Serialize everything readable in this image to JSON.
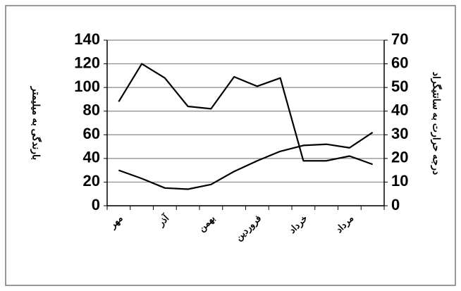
{
  "chart_data": {
    "type": "line",
    "y_label": "بارندگی به میلیمتر",
    "y2_label": "درجه حرارت به سانتیگراد",
    "categories": [
      "مهر",
      null,
      "آذر",
      null,
      "بهمن",
      null,
      "فروردین",
      null,
      "خرداد",
      null,
      "مرداد",
      null
    ],
    "series": [
      {
        "color": "#000000",
        "values": [
          88,
          120,
          108,
          84,
          82,
          109,
          101,
          108,
          38,
          38,
          42,
          35
        ]
      },
      {
        "color": "#000000",
        "axis": "y2",
        "values": [
          15,
          11.5,
          7.5,
          7,
          9,
          14.5,
          19,
          23,
          25.5,
          26,
          24.5,
          31
        ]
      }
    ],
    "ylim": [
      0,
      140
    ],
    "yticks": [
      0,
      20,
      40,
      60,
      80,
      100,
      120,
      140
    ],
    "y2lim": [
      0,
      70
    ],
    "y2ticks": [
      0,
      10,
      20,
      30,
      40,
      50,
      60,
      70
    ],
    "grid": true
  }
}
